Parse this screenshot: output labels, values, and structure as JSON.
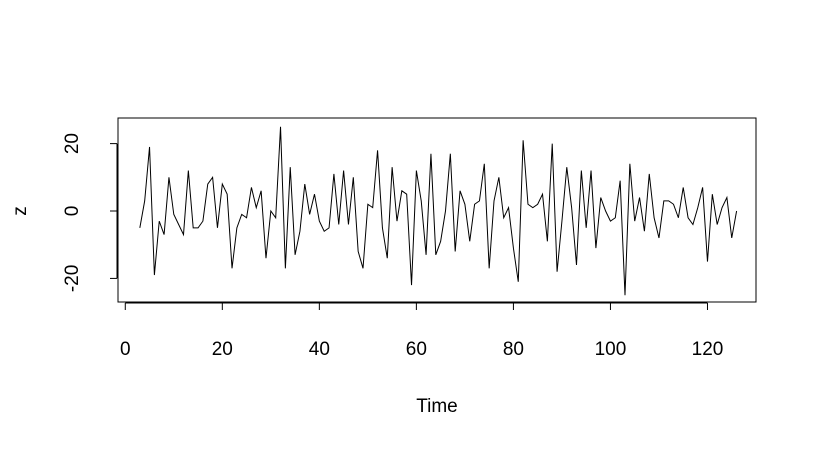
{
  "chart_data": {
    "type": "line",
    "xlabel": "Time",
    "ylabel": "z",
    "color": "#000000",
    "x": [
      3,
      4,
      5,
      6,
      7,
      8,
      9,
      10,
      11,
      12,
      13,
      14,
      15,
      16,
      17,
      18,
      19,
      20,
      21,
      22,
      23,
      24,
      25,
      26,
      27,
      28,
      29,
      30,
      31,
      32,
      33,
      34,
      35,
      36,
      37,
      38,
      39,
      40,
      41,
      42,
      43,
      44,
      45,
      46,
      47,
      48,
      49,
      50,
      51,
      52,
      53,
      54,
      55,
      56,
      57,
      58,
      59,
      60,
      61,
      62,
      63,
      64,
      65,
      66,
      67,
      68,
      69,
      70,
      71,
      72,
      73,
      74,
      75,
      76,
      77,
      78,
      79,
      80,
      81,
      82,
      83,
      84,
      85,
      86,
      87,
      88,
      89,
      90,
      91,
      92,
      93,
      94,
      95,
      96,
      97,
      98,
      99,
      100,
      101,
      102,
      103,
      104,
      105,
      106,
      107,
      108,
      109,
      110,
      111,
      112,
      113,
      114,
      115,
      116,
      117,
      118,
      119,
      120,
      121,
      122,
      123,
      124,
      125,
      126
    ],
    "values": [
      -5,
      3,
      19,
      -19,
      -3,
      -7,
      10,
      -1,
      -4,
      -7,
      12,
      -5,
      -5,
      -3,
      8,
      10,
      -5,
      8,
      5,
      -17,
      -5,
      -1,
      -2,
      7,
      1,
      6,
      -14,
      0,
      -2,
      25,
      -17,
      13,
      -13,
      -6,
      8,
      -1,
      5,
      -3,
      -6,
      -5,
      11,
      -4,
      12,
      -4,
      10,
      -12,
      -17,
      2,
      1,
      18,
      -5,
      -14,
      13,
      -3,
      6,
      5,
      -22,
      12,
      3,
      -13,
      17,
      -13,
      -9,
      0,
      17,
      -12,
      6,
      2,
      -9,
      2,
      3,
      14,
      -17,
      3,
      10,
      -2,
      1,
      -11,
      -21,
      21,
      2,
      1,
      2,
      5,
      -9,
      20,
      -18,
      -3,
      13,
      1,
      -16,
      12,
      -5,
      12,
      -11,
      4,
      0,
      -3,
      -2,
      9,
      -25,
      14,
      -3,
      4,
      -6,
      11,
      -2,
      -8,
      3,
      3,
      2,
      -2,
      7,
      -2,
      -4,
      1,
      7,
      -15,
      5,
      -4,
      1,
      4,
      -8,
      0
    ],
    "xlim": [
      -1.5,
      130
    ],
    "ylim": [
      -27,
      27.6
    ],
    "xticks": [
      0,
      20,
      40,
      60,
      80,
      100,
      120
    ],
    "yticks": [
      -20,
      0,
      20
    ]
  }
}
